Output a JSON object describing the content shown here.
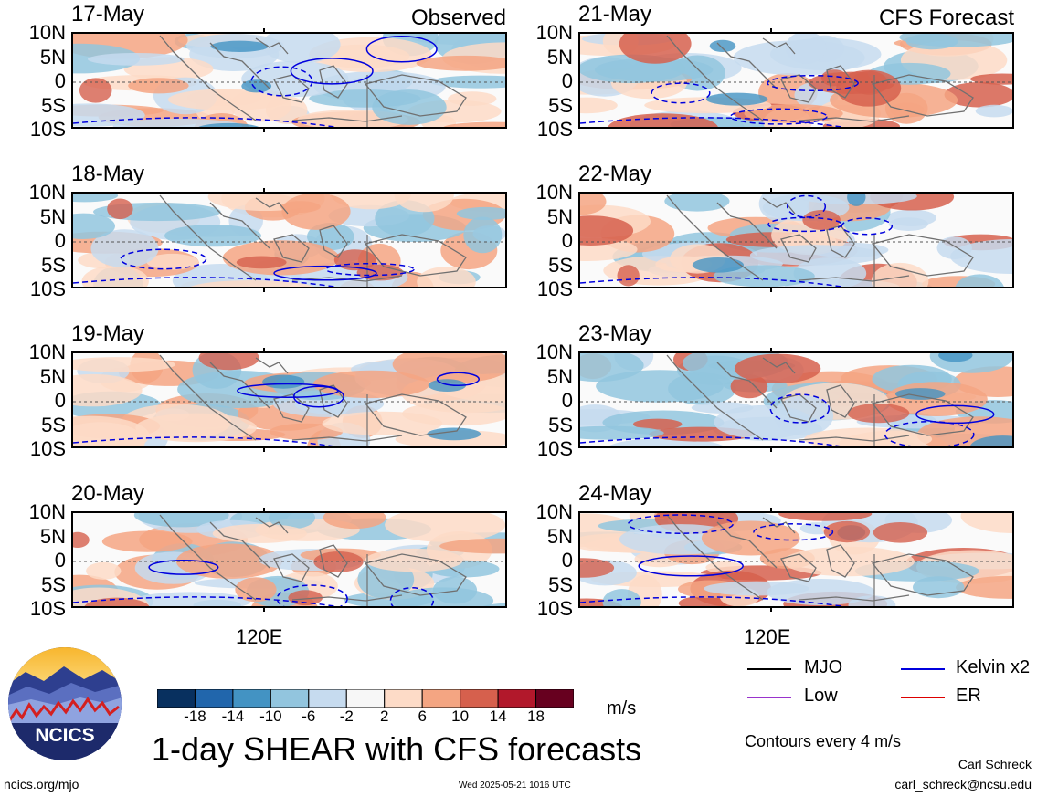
{
  "header": {
    "observed_label": "Observed",
    "forecast_label": "CFS Forecast"
  },
  "chart_data": {
    "type": "heatmap",
    "title": "1-day SHEAR with CFS forecasts",
    "units": "m/s",
    "lat_ticks": [
      "10N",
      "5N",
      "0",
      "5S",
      "10S"
    ],
    "lon_ticks": [
      "120E"
    ],
    "panels": [
      {
        "date": "17-May",
        "kind": "observed"
      },
      {
        "date": "18-May",
        "kind": "observed"
      },
      {
        "date": "19-May",
        "kind": "observed"
      },
      {
        "date": "20-May",
        "kind": "observed"
      },
      {
        "date": "21-May",
        "kind": "forecast"
      },
      {
        "date": "22-May",
        "kind": "forecast"
      },
      {
        "date": "23-May",
        "kind": "forecast"
      },
      {
        "date": "24-May",
        "kind": "forecast"
      }
    ],
    "colorbar": {
      "labels": [
        "-18",
        "-14",
        "-10",
        "-6",
        "-2",
        "2",
        "6",
        "10",
        "14",
        "18"
      ],
      "colors": [
        "#08305f",
        "#2166ac",
        "#4393c3",
        "#92c5de",
        "#c6dbef",
        "#f7f7f7",
        "#fddbc7",
        "#f4a582",
        "#d6604d",
        "#b2182b",
        "#67001f"
      ]
    },
    "legend": [
      {
        "label": "MJO",
        "color": "#000000"
      },
      {
        "label": "Kelvin x2",
        "color": "#0000dd"
      },
      {
        "label": "Low",
        "color": "#9933cc"
      },
      {
        "label": "ER",
        "color": "#dd0000"
      }
    ],
    "contour_note": "Contours every 4 m/s"
  },
  "footer": {
    "logo_text": "NCICS",
    "url": "ncics.org/mjo",
    "timestamp": "Wed 2025-05-21 1016 UTC",
    "author": "Carl Schreck",
    "email": "carl_schreck@ncsu.edu"
  }
}
